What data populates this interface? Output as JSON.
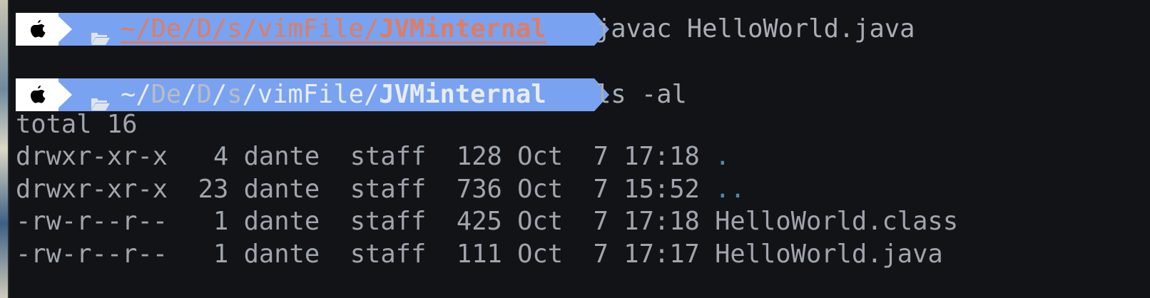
{
  "prompts": [
    {
      "path_parts": [
        "~",
        "/",
        "De",
        "/",
        "D",
        "/",
        "s",
        "/",
        "vimFile",
        "/"
      ],
      "current_dir": "JVMinternal",
      "command": "javac HelloWorld.java"
    },
    {
      "path_parts": [
        "~",
        "/",
        "De",
        "/",
        "D",
        "/",
        "s",
        "/",
        "vimFile",
        "/"
      ],
      "current_dir": "JVMinternal",
      "command": "ls -al"
    }
  ],
  "output": {
    "total": "total 16",
    "rows": [
      {
        "info": "drwxr-xr-x   4 dante  staff  128 Oct  7 17:18 ",
        "name": ".",
        "is_dir": true
      },
      {
        "info": "drwxr-xr-x  23 dante  staff  736 Oct  7 15:52 ",
        "name": "..",
        "is_dir": true
      },
      {
        "info": "-rw-r--r--   1 dante  staff  425 Oct  7 17:18 ",
        "name": "HelloWorld.class",
        "is_dir": false
      },
      {
        "info": "-rw-r--r--   1 dante  staff  111 Oct  7 17:17 ",
        "name": "HelloWorld.java",
        "is_dir": false
      }
    ]
  },
  "colors": {
    "background": "#121317",
    "prompt_blue": "#79a3f0",
    "path_error": "#e07c62",
    "text": "#a0a5ad",
    "dir": "#4a8cb3"
  },
  "icons": {
    "os": "apple-icon",
    "folder": "folder-open-icon"
  }
}
